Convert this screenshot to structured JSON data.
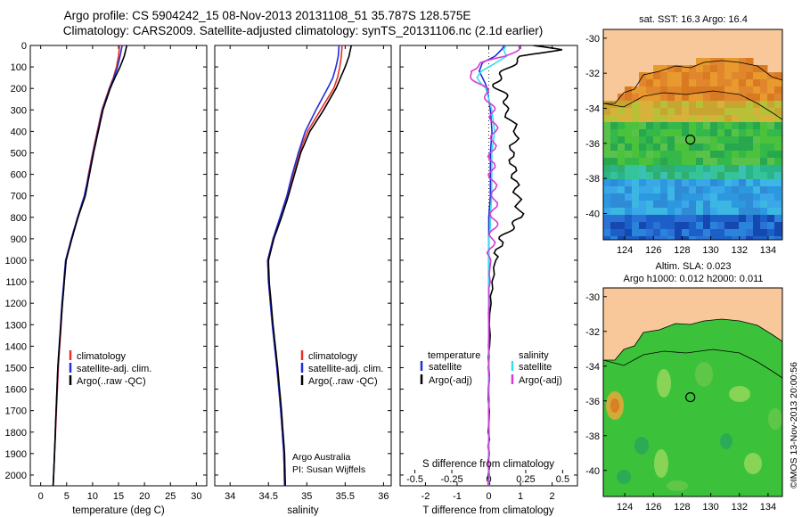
{
  "header": {
    "line1": "Argo profile: CS 5904242_15 08-Nov-2013 20131108_51 35.787S 128.575E",
    "line2": "Climatology: CARS2009. Satellite-adjusted climatology: synTS_20131106.nc (2.1d earlier)"
  },
  "colors": {
    "climatology": "#e8302a",
    "satellite": "#1f2fd8",
    "argo": "#000000",
    "s_satellite": "#33e0e8",
    "s_argo": "#d63ad6",
    "land": "#f8c89a"
  },
  "legend_profile": {
    "climatology": "climatology",
    "satellite": "satellite-adj. clim.",
    "argo": "Argo(..raw -QC)"
  },
  "legend_diff": {
    "temp_heading": "temperature",
    "sal_heading": "salinity",
    "t_satellite": "satellite",
    "t_argo": "Argo(-adj)",
    "s_satellite": "satellite",
    "s_argo": "Argo(-adj)"
  },
  "credit": {
    "org": "Argo Australia",
    "pi": "PI: Susan Wijffels"
  },
  "depth_ticks": [
    "0",
    "100",
    "200",
    "300",
    "400",
    "500",
    "600",
    "700",
    "800",
    "900",
    "1000",
    "1100",
    "1200",
    "1300",
    "1400",
    "1500",
    "1600",
    "1700",
    "1800",
    "1900",
    "2000"
  ],
  "chart_data": [
    {
      "type": "line",
      "id": "temperature",
      "xlabel": "temperature (deg C)",
      "ylabel": "",
      "xlim": [
        -2,
        32
      ],
      "ylim": [
        2050,
        0
      ],
      "xticks": [
        "0",
        "5",
        "10",
        "15",
        "20",
        "25",
        "30"
      ],
      "depth": [
        0,
        50,
        100,
        150,
        200,
        300,
        400,
        500,
        600,
        700,
        800,
        900,
        1000,
        1200,
        1500,
        2000,
        2050
      ],
      "series": [
        {
          "name": "climatology",
          "values": [
            15.2,
            15.0,
            14.6,
            14.0,
            13.2,
            11.8,
            10.9,
            10.0,
            9.2,
            8.5,
            7.2,
            6.0,
            4.9,
            4.2,
            3.4,
            2.5,
            2.4
          ]
        },
        {
          "name": "satellite-adj. clim.",
          "values": [
            15.7,
            15.3,
            14.8,
            14.1,
            13.3,
            11.9,
            11.0,
            10.1,
            9.3,
            8.4,
            7.1,
            5.9,
            4.8,
            4.1,
            3.3,
            2.5,
            2.4
          ]
        },
        {
          "name": "Argo(..raw -QC)",
          "values": [
            16.6,
            16.1,
            15.3,
            14.3,
            13.4,
            12.0,
            11.1,
            10.2,
            9.4,
            8.6,
            7.2,
            6.0,
            4.9,
            4.2,
            3.3,
            2.5,
            2.4
          ]
        }
      ]
    },
    {
      "type": "line",
      "id": "salinity",
      "xlabel": "salinity",
      "ylabel": "",
      "xlim": [
        33.8,
        36.1
      ],
      "ylim": [
        2050,
        0
      ],
      "xticks": [
        "34",
        "34.5",
        "35",
        "35.5",
        "36"
      ],
      "depth": [
        0,
        50,
        100,
        150,
        200,
        300,
        400,
        500,
        600,
        700,
        800,
        900,
        1000,
        1100,
        1300,
        1500,
        1700,
        1900,
        2050
      ],
      "series": [
        {
          "name": "climatology",
          "values": [
            35.46,
            35.45,
            35.43,
            35.4,
            35.35,
            35.18,
            35.01,
            34.9,
            34.82,
            34.75,
            34.66,
            34.56,
            34.49,
            34.5,
            34.55,
            34.61,
            34.66,
            34.7,
            34.71
          ]
        },
        {
          "name": "satellite-adj. clim.",
          "values": [
            35.42,
            35.41,
            35.38,
            35.34,
            35.27,
            35.12,
            34.98,
            34.89,
            34.81,
            34.74,
            34.65,
            34.56,
            34.49,
            34.5,
            34.55,
            34.61,
            34.66,
            34.7,
            34.71
          ]
        },
        {
          "name": "Argo(..raw -QC)",
          "values": [
            35.58,
            35.55,
            35.5,
            35.44,
            35.38,
            35.22,
            35.04,
            34.92,
            34.84,
            34.76,
            34.67,
            34.57,
            34.5,
            34.51,
            34.56,
            34.62,
            34.67,
            34.71,
            34.72
          ]
        }
      ]
    },
    {
      "type": "line",
      "id": "difference",
      "xlabel": "T difference from climatology",
      "xlabel_top": "S difference from climatology",
      "ylabel": "",
      "xlim": [
        -2.8,
        2.8
      ],
      "ylim": [
        2050,
        0
      ],
      "xticks": [
        "-2",
        "-1",
        "0",
        "1",
        "2"
      ],
      "sticks": [
        "-0.5",
        "-0.25",
        "0",
        "0.25",
        "0.5"
      ],
      "sticks_values": [
        -0.5,
        -0.25,
        0,
        0.25,
        0.5
      ],
      "depth": [
        0,
        20,
        50,
        80,
        120,
        150,
        180,
        200,
        250,
        300,
        400,
        500,
        600,
        700,
        800,
        850,
        900,
        1000,
        1200,
        1500,
        1800,
        2000,
        2050
      ],
      "series": [
        {
          "name": "T satellite",
          "values": [
            0.5,
            0.4,
            0.2,
            -0.2,
            -0.3,
            -0.2,
            -0.1,
            -0.05,
            0.0,
            0.05,
            0.1,
            0.05,
            0.05,
            0.05,
            0.0,
            0.0,
            0.0,
            0.0,
            0.0,
            0.0,
            0.0,
            0.0,
            0.0
          ]
        },
        {
          "name": "T Argo(-adj)",
          "values": [
            1.4,
            2.2,
            1.1,
            0.8,
            0.5,
            0.3,
            0.2,
            0.3,
            0.6,
            0.5,
            0.9,
            0.7,
            0.8,
            0.9,
            1.0,
            0.7,
            0.4,
            0.2,
            0.05,
            0.0,
            0.0,
            0.0,
            0.0
          ]
        },
        {
          "name": "S satellite",
          "values": [
            0.12,
            0.1,
            0.12,
            0.05,
            -0.05,
            -0.08,
            -0.05,
            -0.02,
            0.0,
            0.02,
            0.04,
            0.02,
            0.02,
            0.02,
            0.01,
            0.01,
            0.0,
            0.0,
            0.0,
            0.0,
            0.0,
            0.0,
            0.0
          ]
        },
        {
          "name": "S Argo(-adj)",
          "values": [
            0.2,
            0.18,
            0.12,
            -0.04,
            -0.14,
            -0.1,
            -0.06,
            -0.03,
            0.0,
            0.02,
            0.04,
            0.02,
            0.02,
            0.04,
            0.03,
            0.04,
            0.02,
            0.01,
            0.0,
            0.0,
            0.0,
            0.0,
            0.0
          ]
        }
      ]
    },
    {
      "type": "heatmap",
      "id": "sst-map",
      "title": "sat. SST: 16.3 Argo: 16.4",
      "xlim": [
        122.5,
        135
      ],
      "ylim": [
        -41.5,
        -29.5
      ],
      "xticks": [
        "124",
        "126",
        "128",
        "130",
        "132",
        "134"
      ],
      "yticks": [
        "-30",
        "-32",
        "-34",
        "-36",
        "-38",
        "-40"
      ],
      "argo_position": {
        "lon": 128.575,
        "lat": -35.787
      }
    },
    {
      "type": "heatmap",
      "id": "sla-map",
      "title": "Altim. SLA: 0.023",
      "subtitle": "Argo h1000: 0.012 h2000: 0.011",
      "xlim": [
        122.5,
        135
      ],
      "ylim": [
        -41.5,
        -29.5
      ],
      "xticks": [
        "124",
        "126",
        "128",
        "130",
        "132",
        "134"
      ],
      "yticks": [
        "-30",
        "-32",
        "-34",
        "-36",
        "-38",
        "-40"
      ],
      "argo_position": {
        "lon": 128.575,
        "lat": -35.787
      }
    }
  ],
  "footer_stamp": "©IMOS 13-Nov-2013 20:00:56"
}
